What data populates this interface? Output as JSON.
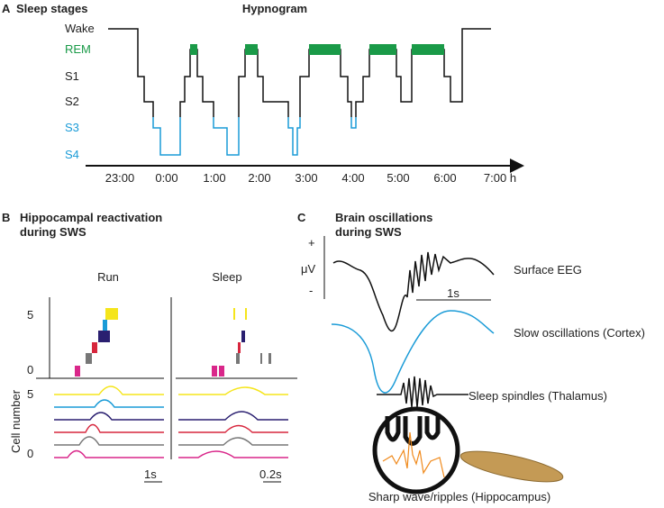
{
  "panel_a": {
    "letter": "A",
    "title": "Sleep stages",
    "subtitle": "Hypnogram",
    "stages": [
      "Wake",
      "REM",
      "S1",
      "S2",
      "S3",
      "S4"
    ],
    "times": [
      "23:00",
      "0:00",
      "1:00",
      "2:00",
      "3:00",
      "4:00",
      "5:00",
      "6:00",
      "7:00 h"
    ]
  },
  "panel_b": {
    "letter": "B",
    "title_line1": "Hippocampal reactivation",
    "title_line2": "during SWS",
    "run": "Run",
    "sleep": "Sleep",
    "raster_top": "5",
    "raster_bottom": "0",
    "y_label": "Cell number",
    "trace_top": "5",
    "trace_bottom": "0",
    "run_scale": "1s",
    "sleep_scale": "0.2s"
  },
  "panel_c": {
    "letter": "C",
    "title_line1": "Brain oscillations",
    "title_line2": "during SWS",
    "plus": "+",
    "unit": "μV",
    "minus": "-",
    "scale": "1s",
    "eeg": "Surface EEG",
    "slow": "Slow oscillations (Cortex)",
    "spindles": "Sleep spindles (Thalamus)",
    "ripples": "Sharp wave/ripples (Hippocampus)"
  }
}
